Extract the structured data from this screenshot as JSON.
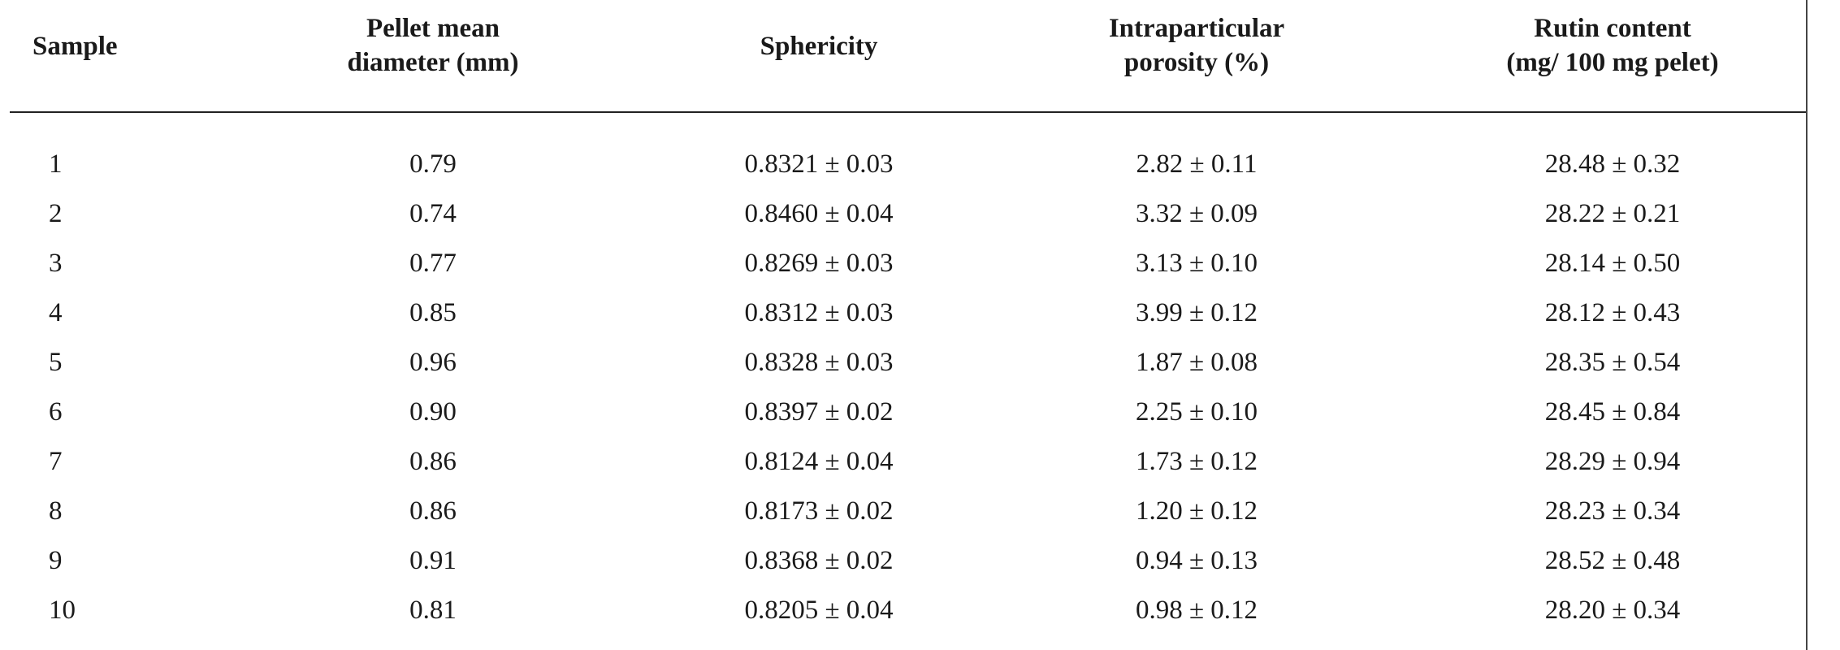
{
  "table": {
    "headers": [
      {
        "lines": [
          "Sample"
        ]
      },
      {
        "lines": [
          "Pellet mean",
          "diameter (mm)"
        ]
      },
      {
        "lines": [
          "Sphericity"
        ]
      },
      {
        "lines": [
          "Intraparticular",
          "porosity (%)"
        ]
      },
      {
        "lines": [
          "Rutin content",
          "(mg/ 100 mg pelet)"
        ]
      }
    ],
    "rows": [
      {
        "sample": "1",
        "diameter": "0.79",
        "sphericity": "0.8321 ± 0.03",
        "porosity": "2.82 ± 0.11",
        "rutin": "28.48 ± 0.32"
      },
      {
        "sample": "2",
        "diameter": "0.74",
        "sphericity": "0.8460 ± 0.04",
        "porosity": "3.32 ± 0.09",
        "rutin": "28.22 ± 0.21"
      },
      {
        "sample": "3",
        "diameter": "0.77",
        "sphericity": "0.8269 ± 0.03",
        "porosity": "3.13 ± 0.10",
        "rutin": "28.14 ± 0.50"
      },
      {
        "sample": "4",
        "diameter": "0.85",
        "sphericity": "0.8312 ± 0.03",
        "porosity": "3.99 ± 0.12",
        "rutin": "28.12 ± 0.43"
      },
      {
        "sample": "5",
        "diameter": "0.96",
        "sphericity": "0.8328 ± 0.03",
        "porosity": "1.87 ± 0.08",
        "rutin": "28.35 ± 0.54"
      },
      {
        "sample": "6",
        "diameter": "0.90",
        "sphericity": "0.8397 ± 0.02",
        "porosity": "2.25 ± 0.10",
        "rutin": "28.45 ± 0.84"
      },
      {
        "sample": "7",
        "diameter": "0.86",
        "sphericity": "0.8124 ± 0.04",
        "porosity": "1.73 ± 0.12",
        "rutin": "28.29 ± 0.94"
      },
      {
        "sample": "8",
        "diameter": "0.86",
        "sphericity": "0.8173 ± 0.02",
        "porosity": "1.20 ± 0.12",
        "rutin": "28.23 ± 0.34"
      },
      {
        "sample": "9",
        "diameter": "0.91",
        "sphericity": "0.8368 ± 0.02",
        "porosity": "0.94 ± 0.13",
        "rutin": "28.52 ± 0.48"
      },
      {
        "sample": "10",
        "diameter": "0.81",
        "sphericity": "0.8205 ± 0.04",
        "porosity": "0.98 ± 0.12",
        "rutin": "28.20 ± 0.34"
      }
    ]
  }
}
